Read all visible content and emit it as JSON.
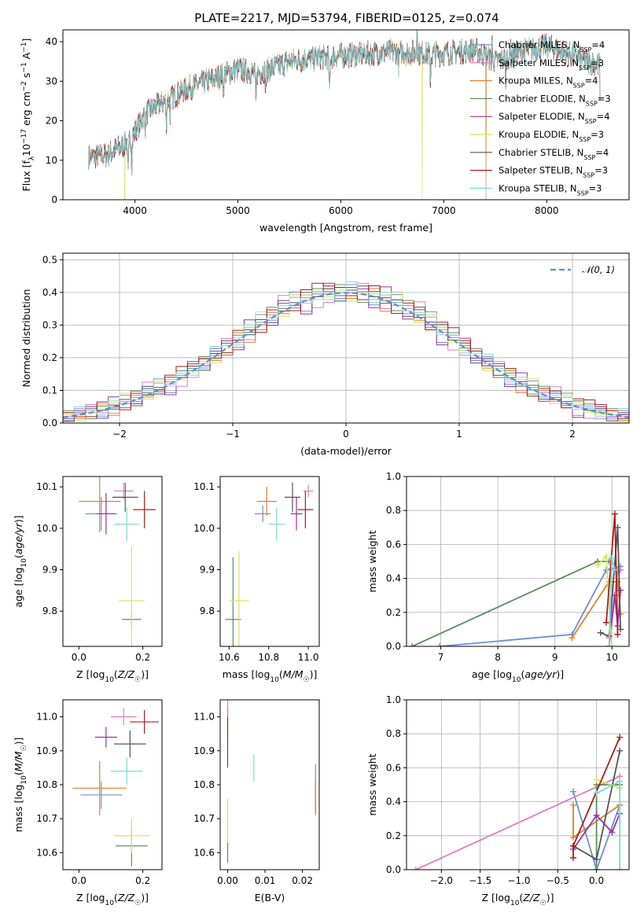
{
  "figure": {
    "title": "PLATE=2217, MJD=53794, FIBERID=0125, z=0.074"
  },
  "colors": {
    "Chabrier MILES": "#6a8fd6",
    "Salpeter MILES": "#e57bc3",
    "Kroupa MILES": "#e0802a",
    "Chabrier ELODIE": "#5b8f5b",
    "Salpeter ELODIE": "#9b30a8",
    "Kroupa ELODIE": "#d4e45a",
    "Chabrier STELIB": "#555555",
    "Salpeter STELIB": "#b11b1b",
    "Kroupa STELIB": "#7fd8d8"
  },
  "legend_spectrum": [
    "Chabrier MILES, N_SSP=4",
    "Salpeter MILES, N_SSP=3",
    "Kroupa MILES, N_SSP=4",
    "Chabrier ELODIE, N_SSP=3",
    "Salpeter ELODIE, N_SSP=4",
    "Kroupa ELODIE, N_SSP=3",
    "Chabrier STELIB, N_SSP=4",
    "Salpeter STELIB, N_SSP=3",
    "Kroupa STELIB, N_SSP=3"
  ],
  "legend_hist": "𝒩(0, 1)",
  "chart_data": [
    {
      "type": "line",
      "id": "spectrum",
      "xlabel": "wavelength [Angstrom, rest frame]",
      "ylabel": "Flux [f_λ 10^-17 erg cm^-2 s^-1 A^-1]",
      "xlim": [
        3300,
        8800
      ],
      "ylim": [
        0,
        43
      ],
      "xticks": [
        4000,
        5000,
        6000,
        7000,
        8000
      ],
      "yticks": [
        0,
        10,
        20,
        30,
        40
      ],
      "continuum": [
        [
          3550,
          11
        ],
        [
          3700,
          11
        ],
        [
          3900,
          14
        ],
        [
          4000,
          17
        ],
        [
          4100,
          22
        ],
        [
          4300,
          25
        ],
        [
          4500,
          28
        ],
        [
          4800,
          31
        ],
        [
          5000,
          33
        ],
        [
          5200,
          32
        ],
        [
          5500,
          35
        ],
        [
          5800,
          36
        ],
        [
          6000,
          36.5
        ],
        [
          6300,
          37
        ],
        [
          6500,
          37.5
        ],
        [
          6800,
          37
        ],
        [
          7000,
          37
        ],
        [
          7300,
          38
        ],
        [
          7500,
          35
        ],
        [
          7700,
          37
        ],
        [
          8000,
          39
        ],
        [
          8200,
          37
        ],
        [
          8400,
          35
        ],
        [
          8520,
          34
        ]
      ],
      "absorption_lines": [
        [
          3934,
          9
        ],
        [
          3969,
          7
        ],
        [
          4102,
          4
        ],
        [
          4304,
          6
        ],
        [
          4341,
          4
        ],
        [
          4861,
          4
        ],
        [
          5175,
          8
        ],
        [
          5270,
          4
        ],
        [
          5890,
          10
        ],
        [
          6563,
          3
        ],
        [
          6870,
          6
        ],
        [
          7600,
          6
        ]
      ],
      "emission_peaks": [
        [
          6740,
          44
        ],
        [
          7470,
          41
        ],
        [
          7650,
          40
        ]
      ],
      "model_dropouts": [
        {
          "model": "Kroupa ELODIE",
          "x": 3900,
          "y": 0
        },
        {
          "model": "Kroupa ELODIE",
          "x": 6790,
          "y": 0
        },
        {
          "model": "Kroupa MILES",
          "x": 7410,
          "y": 0
        },
        {
          "model": "Chabrier STELIB",
          "x": 8520,
          "y": 25
        }
      ],
      "grid": false,
      "legend_position": "upper-right"
    },
    {
      "type": "histogram",
      "id": "residuals",
      "xlabel": "(data-model)/error",
      "ylabel": "Normed distribution",
      "xlim": [
        -2.5,
        2.5
      ],
      "ylim": [
        0,
        0.52
      ],
      "xticks": [
        -2,
        -1,
        0,
        1,
        2
      ],
      "yticks": [
        0,
        0.1,
        0.2,
        0.3,
        0.4,
        0.5
      ],
      "bin_width": 0.1,
      "reference_curve": "standard normal N(0,1), dashed",
      "bin_offsets": [
        [
          0.01,
          -0.02,
          0.03,
          0.0,
          -0.03,
          0.02,
          0.04,
          -0.01,
          0.0,
          0.05,
          -0.04,
          0.01
        ],
        [
          -0.03,
          0.02,
          0.0,
          0.04,
          -0.01,
          -0.03,
          0.02,
          0.01,
          0.06,
          -0.02,
          0.0,
          -0.04
        ],
        [
          0.02,
          0.0,
          -0.02,
          0.01,
          0.03,
          -0.04,
          0.0,
          0.02,
          -0.01,
          0.03,
          0.01,
          0.0
        ],
        [
          0.0,
          0.03,
          0.01,
          -0.03,
          0.02,
          0.0,
          -0.02,
          0.04,
          0.01,
          -0.01,
          0.02,
          0.03
        ],
        [
          0.04,
          -0.01,
          0.02,
          0.02,
          -0.04,
          0.05,
          0.01,
          -0.03,
          0.03,
          0.0,
          -0.05,
          0.02
        ],
        [
          -0.01,
          0.01,
          -0.03,
          0.0,
          0.01,
          0.02,
          0.05,
          0.0,
          -0.02,
          0.04,
          0.02,
          -0.01
        ],
        [
          0.02,
          -0.03,
          0.01,
          0.03,
          0.0,
          -0.01,
          0.02,
          -0.02,
          0.04,
          0.01,
          0.03,
          0.0
        ],
        [
          0.03,
          0.02,
          -0.01,
          -0.02,
          0.04,
          0.01,
          -0.03,
          0.03,
          0.0,
          -0.02,
          0.04,
          0.05
        ],
        [
          -0.02,
          0.0,
          0.04,
          0.01,
          -0.02,
          0.03,
          0.01,
          0.0,
          0.02,
          0.03,
          -0.01,
          0.02
        ]
      ]
    },
    {
      "type": "errorbar",
      "id": "age-vs-Z",
      "xlabel": "Z [log10(Z/Z☉)]",
      "ylabel": "age  [log10(age/yr)]",
      "xlim": [
        -0.05,
        0.26
      ],
      "ylim": [
        9.715,
        10.125
      ],
      "xticks": [
        0.0,
        0.2
      ],
      "yticks": [
        9.8,
        9.9,
        10.0,
        10.1
      ],
      "points": [
        {
          "model": "Chabrier MILES",
          "x": 0.07,
          "xerr": 0.05,
          "y": 10.035,
          "yerr": 0.04
        },
        {
          "model": "Salpeter MILES",
          "x": 0.14,
          "xerr": 0.03,
          "y": 10.09,
          "yerr": 0.02
        },
        {
          "model": "Kroupa MILES",
          "x": 0.065,
          "xerr": 0.065,
          "y": 10.065,
          "yerr": 0.075
        },
        {
          "model": "Chabrier ELODIE",
          "x": 0.165,
          "xerr": 0.03,
          "y": 9.78,
          "yerr": 0.015
        },
        {
          "model": "Salpeter ELODIE",
          "x": 0.085,
          "xerr": 0.03,
          "y": 10.035,
          "yerr": 0.05
        },
        {
          "model": "Kroupa ELODIE",
          "x": 0.165,
          "xerr": 0.04,
          "y": 9.825,
          "yerr": 0.13
        },
        {
          "model": "Chabrier STELIB",
          "x": 0.145,
          "xerr": 0.04,
          "y": 10.075,
          "yerr": 0.035
        },
        {
          "model": "Salpeter STELIB",
          "x": 0.205,
          "xerr": 0.035,
          "y": 10.045,
          "yerr": 0.045
        },
        {
          "model": "Kroupa STELIB",
          "x": 0.15,
          "xerr": 0.04,
          "y": 10.01,
          "yerr": 0.04
        }
      ]
    },
    {
      "type": "errorbar",
      "id": "age-vs-mass",
      "xlabel": "mass [log10(M/M☉)]",
      "ylabel": "",
      "xlim": [
        10.555,
        11.055
      ],
      "ylim": [
        9.715,
        10.125
      ],
      "xticks": [
        10.6,
        10.8,
        11.0
      ],
      "yticks": [
        9.8,
        9.9,
        10.0,
        10.1
      ],
      "points": [
        {
          "model": "Chabrier MILES",
          "x": 10.77,
          "xerr": 0.04,
          "y": 10.035,
          "yerr": 0.02
        },
        {
          "model": "Salpeter MILES",
          "x": 11.0,
          "xerr": 0.025,
          "y": 10.09,
          "yerr": 0.015
        },
        {
          "model": "Kroupa MILES",
          "x": 10.79,
          "xerr": 0.05,
          "y": 10.065,
          "yerr": 0.035
        },
        {
          "model": "Chabrier ELODIE",
          "x": 10.62,
          "xerr": 0.04,
          "y": 9.78,
          "yerr": 0.15
        },
        {
          "model": "Salpeter ELODIE",
          "x": 10.94,
          "xerr": 0.03,
          "y": 10.035,
          "yerr": 0.04
        },
        {
          "model": "Kroupa ELODIE",
          "x": 10.65,
          "xerr": 0.05,
          "y": 9.825,
          "yerr": 0.12
        },
        {
          "model": "Chabrier STELIB",
          "x": 10.92,
          "xerr": 0.04,
          "y": 10.075,
          "yerr": 0.035
        },
        {
          "model": "Salpeter STELIB",
          "x": 10.985,
          "xerr": 0.04,
          "y": 10.045,
          "yerr": 0.045
        },
        {
          "model": "Kroupa STELIB",
          "x": 10.84,
          "xerr": 0.04,
          "y": 10.01,
          "yerr": 0.04
        }
      ]
    },
    {
      "type": "line",
      "id": "massweight-vs-age",
      "xlabel": "age  [log10(age/yr)]",
      "ylabel": "mass weight",
      "xlim": [
        6.4,
        10.3
      ],
      "ylim": [
        0,
        1.0
      ],
      "xticks": [
        7,
        8,
        9,
        10
      ],
      "yticks": [
        0.0,
        0.2,
        0.4,
        0.6,
        0.8,
        1.0
      ],
      "grid": true,
      "series": [
        {
          "model": "Chabrier MILES",
          "x": [
            6.98,
            9.3,
            9.9,
            10.15
          ],
          "y": [
            0.0,
            0.07,
            0.45,
            0.47
          ]
        },
        {
          "model": "Salpeter MILES",
          "x": [
            9.95,
            10.1,
            10.15
          ],
          "y": [
            0.05,
            0.44,
            0.45
          ]
        },
        {
          "model": "Kroupa MILES",
          "x": [
            9.3,
            9.95,
            10.1,
            10.15
          ],
          "y": [
            0.05,
            0.38,
            0.38,
            0.19
          ]
        },
        {
          "model": "Chabrier ELODIE",
          "x": [
            6.5,
            9.75,
            9.95
          ],
          "y": [
            0.0,
            0.5,
            0.5
          ]
        },
        {
          "model": "Salpeter ELODIE",
          "x": [
            9.95,
            10.05,
            10.1,
            10.15
          ],
          "y": [
            0.0,
            0.3,
            0.12,
            0.33
          ]
        },
        {
          "model": "Kroupa ELODIE",
          "x": [
            9.75,
            9.9,
            10.0
          ],
          "y": [
            0.48,
            0.53,
            0.0
          ]
        },
        {
          "model": "Chabrier STELIB",
          "x": [
            9.8,
            9.95,
            10.1,
            10.15
          ],
          "y": [
            0.08,
            0.06,
            0.7,
            0.1
          ]
        },
        {
          "model": "Salpeter STELIB",
          "x": [
            9.9,
            10.05,
            10.1
          ],
          "y": [
            0.14,
            0.78,
            0.07
          ]
        },
        {
          "model": "Kroupa STELIB",
          "x": [
            9.95,
            10.0,
            10.05
          ],
          "y": [
            0.0,
            0.52,
            0.45
          ]
        }
      ]
    },
    {
      "type": "errorbar",
      "id": "mass-vs-Z",
      "xlabel": "Z [log10(Z/Z☉)]",
      "ylabel": "mass [log10(M/M☉)]",
      "xlim": [
        -0.05,
        0.26
      ],
      "ylim": [
        10.55,
        11.05
      ],
      "xticks": [
        0.0,
        0.2
      ],
      "yticks": [
        10.6,
        10.7,
        10.8,
        10.9,
        11.0
      ],
      "points": [
        {
          "model": "Chabrier MILES",
          "x": 0.07,
          "xerr": 0.065,
          "y": 10.77,
          "yerr": 0.04
        },
        {
          "model": "Salpeter MILES",
          "x": 0.14,
          "xerr": 0.04,
          "y": 11.0,
          "yerr": 0.025
        },
        {
          "model": "Kroupa MILES",
          "x": 0.065,
          "xerr": 0.085,
          "y": 10.79,
          "yerr": 0.08
        },
        {
          "model": "Chabrier ELODIE",
          "x": 0.165,
          "xerr": 0.05,
          "y": 10.62,
          "yerr": 0.06
        },
        {
          "model": "Salpeter ELODIE",
          "x": 0.085,
          "xerr": 0.035,
          "y": 10.94,
          "yerr": 0.03
        },
        {
          "model": "Kroupa ELODIE",
          "x": 0.165,
          "xerr": 0.055,
          "y": 10.65,
          "yerr": 0.05
        },
        {
          "model": "Chabrier STELIB",
          "x": 0.16,
          "xerr": 0.05,
          "y": 10.92,
          "yerr": 0.04
        },
        {
          "model": "Salpeter STELIB",
          "x": 0.205,
          "xerr": 0.045,
          "y": 10.985,
          "yerr": 0.035
        },
        {
          "model": "Kroupa STELIB",
          "x": 0.15,
          "xerr": 0.05,
          "y": 10.84,
          "yerr": 0.04
        }
      ]
    },
    {
      "type": "errorbar",
      "id": "mass-vs-EBV",
      "xlabel": "E(B-V)",
      "ylabel": "",
      "xlim": [
        -0.002,
        0.0245
      ],
      "ylim": [
        10.55,
        11.05
      ],
      "xticks": [
        0.0,
        0.01,
        0.02
      ],
      "yticks": [
        10.6,
        10.7,
        10.8,
        10.9,
        11.0
      ],
      "points": [
        {
          "model": "Chabrier MILES",
          "x": 0.0235,
          "xerr": 0,
          "y": 10.79,
          "yerr": 0.07
        },
        {
          "model": "Kroupa MILES",
          "x": 0.0235,
          "xerr": 0,
          "y": 10.76,
          "yerr": 0.05
        },
        {
          "model": "Kroupa STELIB",
          "x": 0.007,
          "xerr": 0,
          "y": 10.85,
          "yerr": 0.04
        },
        {
          "model": "Salpeter STELIB",
          "x": 0.0,
          "xerr": 0,
          "y": 10.985,
          "yerr": 0.045
        },
        {
          "model": "Salpeter MILES",
          "x": 0.0,
          "xerr": 0,
          "y": 11.05,
          "yerr": 0.05
        },
        {
          "model": "Chabrier STELIB",
          "x": 0.0,
          "xerr": 0,
          "y": 10.92,
          "yerr": 0.07
        },
        {
          "model": "Kroupa ELODIE",
          "x": 0.0,
          "xerr": 0,
          "y": 10.68,
          "yerr": 0.08
        },
        {
          "model": "Chabrier ELODIE",
          "x": 0.0,
          "xerr": 0,
          "y": 10.6,
          "yerr": 0.03
        }
      ]
    },
    {
      "type": "line",
      "id": "massweight-vs-Z",
      "xlabel": "Z [log10(Z/Z☉)]",
      "ylabel": "mass weight",
      "xlim": [
        -2.45,
        0.42
      ],
      "ylim": [
        0,
        1.0
      ],
      "xticks": [
        -2.0,
        -1.5,
        -1.0,
        -0.5,
        0.0
      ],
      "yticks": [
        0.0,
        0.2,
        0.4,
        0.6,
        0.8,
        1.0
      ],
      "grid": true,
      "series": [
        {
          "model": "Chabrier MILES",
          "x": [
            -0.3,
            0.0,
            0.3
          ],
          "y": [
            0.46,
            0.0,
            0.38
          ]
        },
        {
          "model": "Salpeter MILES",
          "x": [
            -2.33,
            0.3
          ],
          "y": [
            0.0,
            0.55
          ]
        },
        {
          "model": "Kroupa MILES",
          "x": [
            -0.3,
            -0.3,
            0.3
          ],
          "y": [
            0.38,
            0.19,
            0.38
          ]
        },
        {
          "model": "Chabrier ELODIE",
          "x": [
            0.0,
            0.0,
            0.3
          ],
          "y": [
            0.0,
            0.5,
            0.5
          ]
        },
        {
          "model": "Salpeter ELODIE",
          "x": [
            -0.3,
            0.0,
            0.2,
            0.3
          ],
          "y": [
            0.12,
            0.32,
            0.22,
            0.33
          ]
        },
        {
          "model": "Kroupa ELODIE",
          "x": [
            0.0,
            0.3,
            0.3
          ],
          "y": [
            0.53,
            0.48,
            0.0
          ]
        },
        {
          "model": "Chabrier STELIB",
          "x": [
            -0.3,
            0.0,
            0.3
          ],
          "y": [
            0.14,
            0.06,
            0.7
          ]
        },
        {
          "model": "Salpeter STELIB",
          "x": [
            -0.3,
            -0.3,
            0.3
          ],
          "y": [
            0.07,
            0.14,
            0.78
          ]
        },
        {
          "model": "Kroupa STELIB",
          "x": [
            0.0,
            0.3,
            0.3
          ],
          "y": [
            0.45,
            0.52,
            0.0
          ]
        }
      ]
    }
  ]
}
